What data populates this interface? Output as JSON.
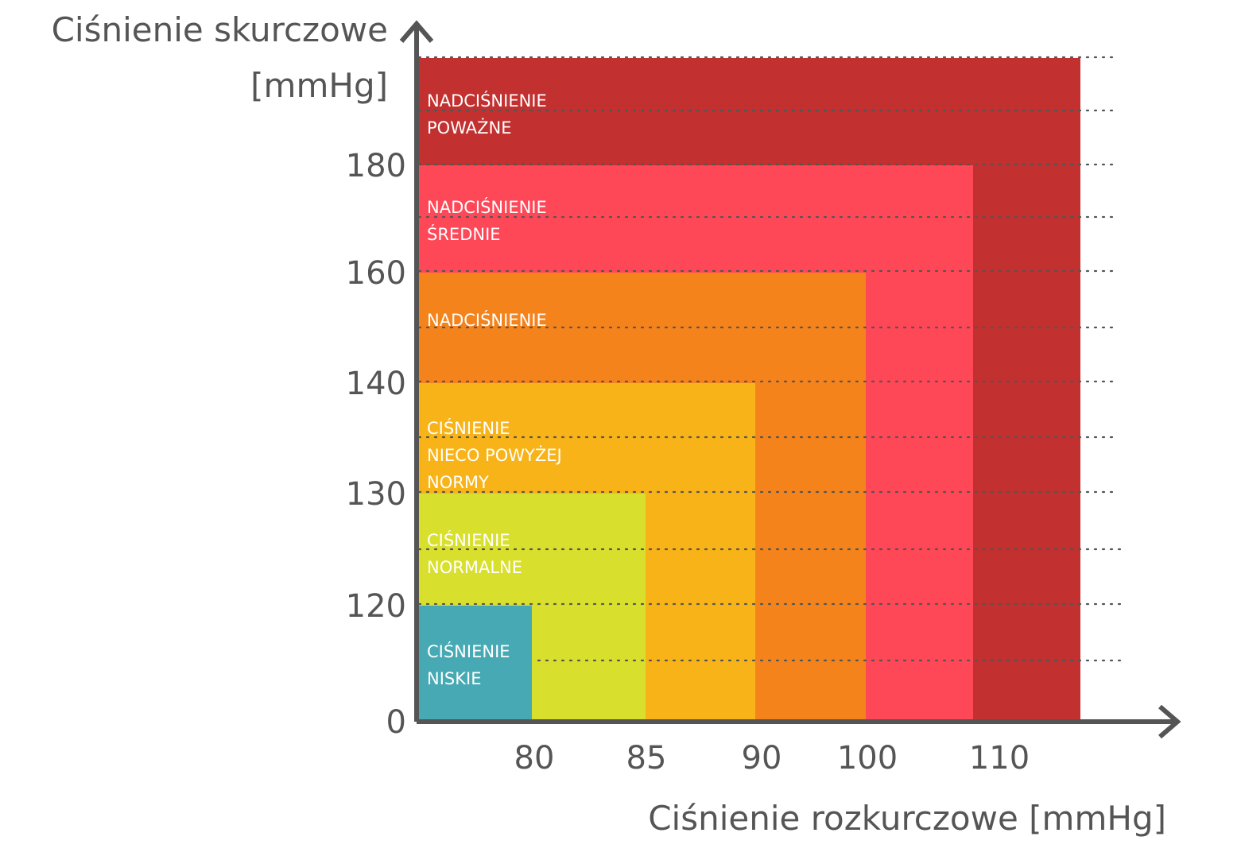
{
  "chart_data": {
    "type": "heatmap",
    "ylabel_lines": [
      "Ciśnienie skurczowe",
      "[mmHg]"
    ],
    "xlabel": "Ciśnienie rozkurczowe [mmHg]",
    "x_ticks": [
      "80",
      "85",
      "90",
      "100",
      "110"
    ],
    "y_ticks": [
      "0",
      "120",
      "130",
      "140",
      "160",
      "180"
    ],
    "zones": [
      {
        "id": "severe",
        "label_lines": [
          "NADCIŚNIENIE",
          "POWAŻNE"
        ],
        "color": "#c23030",
        "diastolic_max": "above 110",
        "systolic_max": "above 180"
      },
      {
        "id": "moderate",
        "label_lines": [
          "NADCIŚNIENIE",
          "ŚREDNIE"
        ],
        "color": "#fe4757",
        "diastolic_max": "110",
        "systolic_max": "180"
      },
      {
        "id": "hyper",
        "label_lines": [
          "NADCIŚNIENIE"
        ],
        "color": "#f5831c",
        "diastolic_max": "100",
        "systolic_max": "160"
      },
      {
        "id": "elevated",
        "label_lines": [
          "CIŚNIENIE",
          "NIECO POWYŻEJ",
          "NORMY"
        ],
        "color": "#f7b318",
        "diastolic_max": "90",
        "systolic_max": "140"
      },
      {
        "id": "normal",
        "label_lines": [
          "CIŚNIENIE",
          "NORMALNE"
        ],
        "color": "#d8df2c",
        "diastolic_max": "85",
        "systolic_max": "130"
      },
      {
        "id": "low",
        "label_lines": [
          "CIŚNIENIE",
          "NISKIE"
        ],
        "color": "#47a9b3",
        "diastolic_max": "80",
        "systolic_max": "120"
      }
    ],
    "grid": true,
    "axis_color": "#555555"
  }
}
